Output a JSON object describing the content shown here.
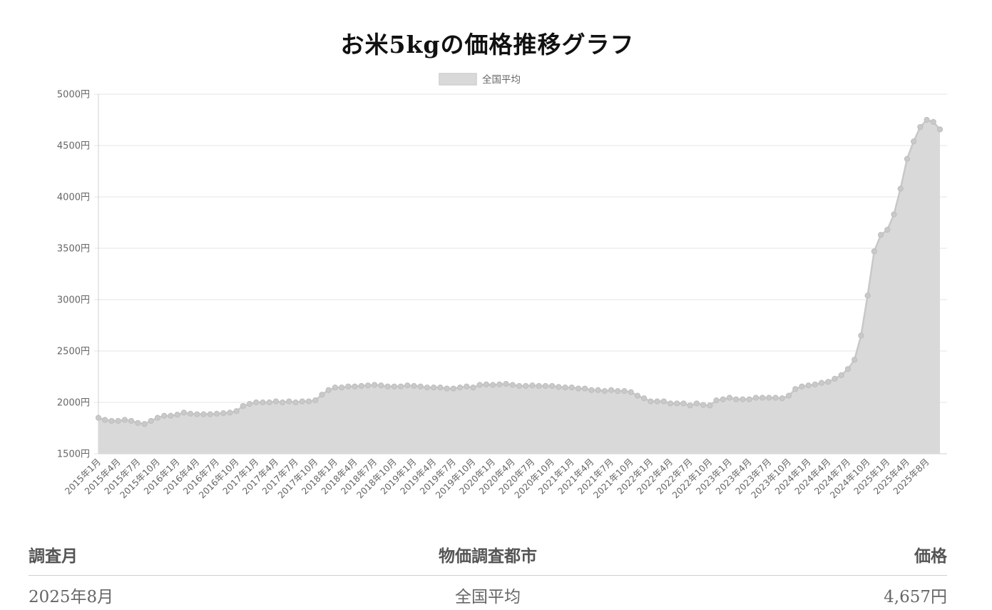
{
  "page_title": "お米5kgの価格推移グラフ",
  "chart_data": {
    "type": "area",
    "title": "お米5kgの価格推移グラフ",
    "legend": {
      "position": "top-center",
      "entries": [
        "全国平均"
      ]
    },
    "ylim": [
      1500,
      5000
    ],
    "y_ticks": [
      "1500円",
      "2000円",
      "2500円",
      "3000円",
      "3500円",
      "4000円",
      "4500円",
      "5000円"
    ],
    "y_tick_values": [
      1500,
      2000,
      2500,
      3000,
      3500,
      4000,
      4500,
      5000
    ],
    "grid": true,
    "x_tick_labels": [
      "2015年1月",
      "2015年4月",
      "2015年7月",
      "2015年10月",
      "2016年1月",
      "2016年4月",
      "2016年7月",
      "2016年10月",
      "2017年1月",
      "2017年4月",
      "2017年7月",
      "2017年10月",
      "2018年1月",
      "2018年4月",
      "2018年7月",
      "2018年10月",
      "2019年1月",
      "2019年4月",
      "2019年7月",
      "2019年10月",
      "2020年1月",
      "2020年4月",
      "2020年7月",
      "2020年10月",
      "2021年1月",
      "2021年4月",
      "2021年7月",
      "2021年10月",
      "2022年1月",
      "2022年4月",
      "2022年7月",
      "2022年10月",
      "2023年1月",
      "2023年4月",
      "2023年7月",
      "2023年10月",
      "2024年1月",
      "2024年4月",
      "2024年7月",
      "2024年10月",
      "2025年1月",
      "2025年4月",
      "2025年8月"
    ],
    "x_start": "2015年1月",
    "x_end": "2025年8月",
    "series": [
      {
        "name": "全国平均",
        "color": "#d9d9d9",
        "line_color": "#c8c8c8",
        "values": [
          1850,
          1830,
          1820,
          1820,
          1830,
          1820,
          1800,
          1790,
          1820,
          1850,
          1870,
          1870,
          1880,
          1900,
          1890,
          1885,
          1885,
          1885,
          1890,
          1895,
          1900,
          1915,
          1965,
          1985,
          2000,
          2000,
          2000,
          2010,
          2000,
          2010,
          2000,
          2010,
          2010,
          2020,
          2075,
          2120,
          2145,
          2145,
          2155,
          2155,
          2160,
          2165,
          2170,
          2165,
          2155,
          2155,
          2155,
          2165,
          2160,
          2155,
          2145,
          2145,
          2145,
          2135,
          2135,
          2145,
          2155,
          2145,
          2170,
          2175,
          2170,
          2175,
          2180,
          2170,
          2160,
          2160,
          2165,
          2160,
          2160,
          2160,
          2150,
          2145,
          2145,
          2135,
          2135,
          2120,
          2120,
          2110,
          2120,
          2110,
          2110,
          2100,
          2065,
          2040,
          2010,
          2010,
          2010,
          1990,
          1990,
          1990,
          1970,
          1990,
          1975,
          1970,
          2020,
          2030,
          2045,
          2030,
          2030,
          2030,
          2045,
          2045,
          2045,
          2045,
          2040,
          2065,
          2130,
          2155,
          2165,
          2175,
          2190,
          2200,
          2230,
          2265,
          2325,
          2415,
          2650,
          3040,
          3470,
          3630,
          3680,
          3830,
          4080,
          4370,
          4540,
          4680,
          4750,
          4730,
          4657
        ]
      }
    ]
  },
  "table": {
    "headers": [
      "調査月",
      "物価調査都市",
      "価格"
    ],
    "rows": [
      [
        "2025年8月",
        "全国平均",
        "4,657円"
      ]
    ]
  }
}
